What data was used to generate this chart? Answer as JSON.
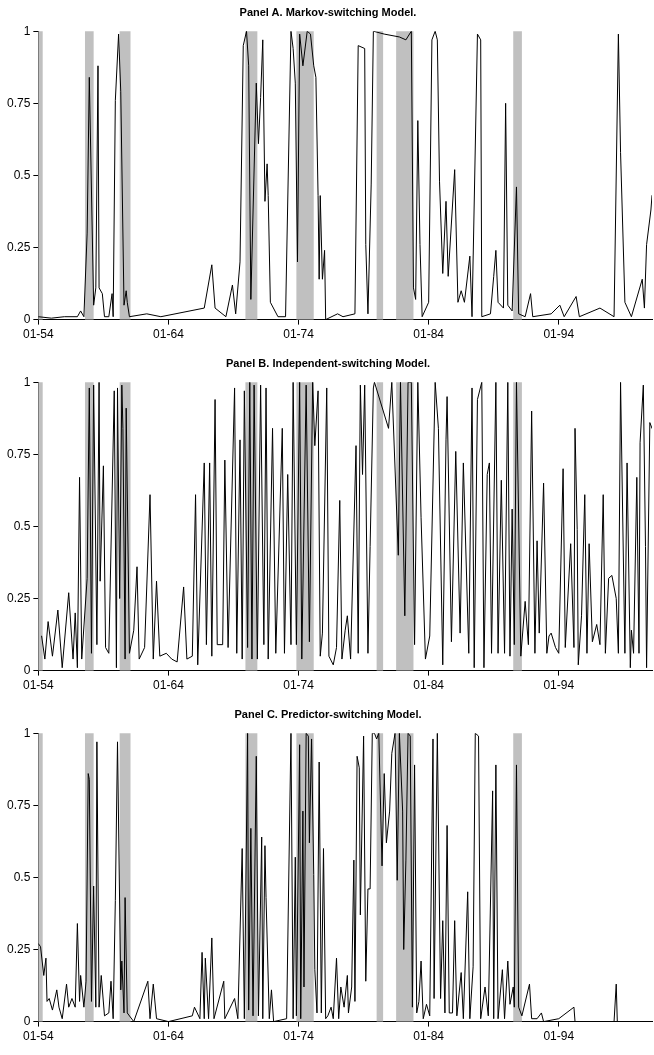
{
  "chart_data": [
    {
      "type": "line",
      "title": "Panel A. Markov-switching Model.",
      "xlim": [
        "1954-01",
        "2001-03"
      ],
      "xticks": [
        {
          "value": "1954-01",
          "label": "01-54"
        },
        {
          "value": "1964-01",
          "label": "01-64"
        },
        {
          "value": "1974-01",
          "label": "01-74"
        },
        {
          "value": "1984-01",
          "label": "01-84"
        },
        {
          "value": "1994-01",
          "label": "01-94"
        }
      ],
      "ylim": [
        0,
        1
      ],
      "yticks": [
        0,
        0.25,
        0.5,
        0.75,
        1
      ],
      "grid": false,
      "legend": false,
      "bands": [
        {
          "axis": "x",
          "from": "1954-01",
          "to": "1954-05",
          "color": "#c0c0c0"
        },
        {
          "axis": "x",
          "from": "1957-08",
          "to": "1958-04",
          "color": "#c0c0c0"
        },
        {
          "axis": "x",
          "from": "1960-04",
          "to": "1961-02",
          "color": "#c0c0c0"
        },
        {
          "axis": "x",
          "from": "1969-12",
          "to": "1970-11",
          "color": "#c0c0c0"
        },
        {
          "axis": "x",
          "from": "1973-11",
          "to": "1975-03",
          "color": "#c0c0c0"
        },
        {
          "axis": "x",
          "from": "1980-01",
          "to": "1980-07",
          "color": "#c0c0c0"
        },
        {
          "axis": "x",
          "from": "1981-07",
          "to": "1982-11",
          "color": "#c0c0c0"
        },
        {
          "axis": "x",
          "from": "1990-07",
          "to": "1991-03",
          "color": "#c0c0c0"
        }
      ],
      "series": [
        {
          "color": "#000000",
          "x": [
            "1954-01",
            "1955-01",
            "1956-01",
            "1957-01",
            "1957-04",
            "1957-07",
            "1957-10",
            "1957-12",
            "1958-04",
            "1958-06",
            "1958-08",
            "1958-09",
            "1958-12",
            "1959-02",
            "1959-06",
            "1959-09",
            "1959-10",
            "1959-12",
            "1960-03",
            "1960-05",
            "1960-08",
            "1960-10",
            "1960-11",
            "1961-01",
            "1962-05",
            "1963-06",
            "1966-10",
            "1967-05",
            "1967-08",
            "1968-06",
            "1968-12",
            "1969-03",
            "1969-07",
            "1969-10",
            "1970-01",
            "1970-03",
            "1970-05",
            "1970-10",
            "1970-12",
            "1971-02",
            "1971-04",
            "1971-06",
            "1971-08",
            "1971-09",
            "1971-11",
            "1972-06",
            "1973-01",
            "1973-06",
            "1973-08",
            "1973-10",
            "1973-12",
            "1974-02",
            "1974-05",
            "1974-09",
            "1974-12",
            "1975-03",
            "1975-05",
            "1975-07",
            "1975-08",
            "1975-09",
            "1975-11",
            "1976-01",
            "1976-02",
            "1977-01",
            "1977-06",
            "1978-05",
            "1978-08",
            "1979-02",
            "1979-03",
            "1979-05",
            "1979-08",
            "1979-10",
            "1980-08",
            "1981-10",
            "1982-04",
            "1982-09",
            "1982-11",
            "1983-01",
            "1983-03",
            "1983-05",
            "1983-07",
            "1984-01",
            "1984-04",
            "1984-07",
            "1984-09",
            "1984-11",
            "1985-02",
            "1985-05",
            "1985-07",
            "1986-01",
            "1986-04",
            "1986-07",
            "1986-10",
            "1987-03",
            "1987-05",
            "1987-10",
            "1988-01",
            "1988-02",
            "1988-10",
            "1989-01",
            "1989-03",
            "1989-05",
            "1989-10",
            "1989-12",
            "1990-02",
            "1990-06",
            "1990-10",
            "1990-12",
            "1991-06",
            "1991-11",
            "1992-01",
            "1993-06",
            "1994-02",
            "1994-06",
            "1995-05",
            "1995-08",
            "1997-03",
            "1998-04",
            "1998-08",
            "1998-10",
            "1999-02",
            "1999-08",
            "2000-06",
            "2000-08",
            "2000-10",
            "2001-02",
            "2001-03"
          ],
          "values": [
            0.01,
            0.005,
            0.01,
            0.01,
            0.03,
            0.01,
            0.3,
            0.84,
            0.05,
            0.11,
            0.88,
            0.11,
            0.09,
            0.01,
            0.01,
            0.09,
            0.01,
            0.76,
            0.99,
            0.79,
            0.05,
            0.1,
            0.06,
            0.01,
            0.02,
            0.01,
            0.04,
            0.19,
            0.04,
            0.01,
            0.12,
            0.02,
            0.2,
            0.95,
            1,
            0.88,
            0.07,
            0.82,
            0.61,
            0.77,
            0.97,
            0.41,
            0.54,
            0.43,
            0.06,
            0.01,
            0.01,
            1,
            0.94,
            0.82,
            0.2,
            0.99,
            0.88,
            1,
            0.99,
            0.88,
            0.84,
            0.43,
            0.14,
            0.43,
            0.14,
            0.24,
            0,
            0.02,
            0.01,
            0.02,
            0.95,
            0.94,
            0.26,
            0.02,
            0.47,
            1,
            0.99,
            0.98,
            0.97,
            1,
            0.11,
            0.07,
            0.69,
            0.26,
            0.01,
            0.06,
            0.97,
            1,
            0.97,
            0.48,
            0.16,
            0.41,
            0.15,
            0.52,
            0.06,
            0.1,
            0.06,
            0.22,
            0.01,
            0.99,
            0.97,
            0.01,
            0.02,
            0.15,
            0.24,
            0.06,
            0.04,
            0.75,
            0.05,
            0.03,
            0.46,
            0.02,
            0.01,
            0.09,
            0.01,
            0.02,
            0.05,
            0.01,
            0.08,
            0.01,
            0.04,
            0.01,
            0.99,
            0.58,
            0.06,
            0.01,
            0.14,
            0.04,
            0.26,
            0.38,
            0.43
          ]
        }
      ]
    },
    {
      "type": "line",
      "title": "Panel B. Independent-switching Model.",
      "xlim": [
        "1954-01",
        "2001-03"
      ],
      "xticks": [
        {
          "value": "1954-01",
          "label": "01-54"
        },
        {
          "value": "1964-01",
          "label": "01-64"
        },
        {
          "value": "1974-01",
          "label": "01-74"
        },
        {
          "value": "1984-01",
          "label": "01-84"
        },
        {
          "value": "1994-01",
          "label": "01-94"
        }
      ],
      "ylim": [
        0,
        1
      ],
      "yticks": [
        0,
        0.25,
        0.5,
        0.75,
        1
      ],
      "grid": false,
      "legend": false,
      "bands": [
        {
          "axis": "x",
          "from": "1954-01",
          "to": "1954-05",
          "color": "#c0c0c0"
        },
        {
          "axis": "x",
          "from": "1957-08",
          "to": "1958-04",
          "color": "#c0c0c0"
        },
        {
          "axis": "x",
          "from": "1960-04",
          "to": "1961-02",
          "color": "#c0c0c0"
        },
        {
          "axis": "x",
          "from": "1969-12",
          "to": "1970-11",
          "color": "#c0c0c0"
        },
        {
          "axis": "x",
          "from": "1973-11",
          "to": "1975-03",
          "color": "#c0c0c0"
        },
        {
          "axis": "x",
          "from": "1980-01",
          "to": "1980-07",
          "color": "#c0c0c0"
        },
        {
          "axis": "x",
          "from": "1981-07",
          "to": "1982-11",
          "color": "#c0c0c0"
        },
        {
          "axis": "x",
          "from": "1990-07",
          "to": "1991-03",
          "color": "#c0c0c0"
        }
      ],
      "series": [
        {
          "color": "#000000",
          "x": [
            "1954-04",
            "1954-07",
            "1954-10",
            "1955-02",
            "1955-07",
            "1955-11",
            "1956-05",
            "1956-09",
            "1956-11",
            "1957-01",
            "1957-03",
            "1957-05",
            "1957-10",
            "1957-12",
            "1958-02",
            "1958-04",
            "1958-07",
            "1958-09",
            "1958-10",
            "1959-01",
            "1959-03",
            "1959-06",
            "1959-11",
            "1960-01",
            "1960-02",
            "1960-04",
            "1960-06",
            "1960-07",
            "1960-09",
            "1960-10",
            "1961-01",
            "1961-05",
            "1961-08",
            "1961-10",
            "1962-03",
            "1962-08",
            "1962-11",
            "1963-02",
            "1963-05",
            "1963-11",
            "1964-04",
            "1964-09",
            "1965-03",
            "1965-06",
            "1965-11",
            "1966-02",
            "1966-04",
            "1966-10",
            "1966-12",
            "1967-03",
            "1967-05",
            "1967-08",
            "1967-10",
            "1968-03",
            "1968-05",
            "1968-08",
            "1969-02",
            "1969-04",
            "1969-07",
            "1969-09",
            "1969-11",
            "1970-02",
            "1970-04",
            "1970-06",
            "1970-08",
            "1970-11",
            "1971-02",
            "1971-05",
            "1971-07",
            "1971-09",
            "1972-01",
            "1972-04",
            "1972-10",
            "1972-12",
            "1973-03",
            "1973-06",
            "1973-08",
            "1973-11",
            "1974-02",
            "1974-04",
            "1974-08",
            "1974-11",
            "1975-02",
            "1975-04",
            "1975-07",
            "1975-09",
            "1975-11",
            "1976-03",
            "1976-05",
            "1976-09",
            "1976-12",
            "1977-03",
            "1977-05",
            "1977-08",
            "1977-10",
            "1978-01",
            "1978-06",
            "1978-08",
            "1978-10",
            "1978-12",
            "1979-02",
            "1979-05",
            "1979-07",
            "1979-10",
            "1979-11",
            "1980-12",
            "1981-03",
            "1981-09",
            "1981-11",
            "1982-03",
            "1982-06",
            "1982-09",
            "1982-12",
            "1983-03",
            "1983-06",
            "1983-10",
            "1984-02",
            "1984-07",
            "1984-10",
            "1985-02",
            "1985-05",
            "1985-06",
            "1985-10",
            "1986-02",
            "1986-06",
            "1986-09",
            "1987-02",
            "1987-05",
            "1987-07",
            "1987-10",
            "1988-02",
            "1988-04",
            "1988-07",
            "1988-09",
            "1988-11",
            "1989-03",
            "1989-05",
            "1989-08",
            "1989-11",
            "1990-02",
            "1990-04",
            "1990-06",
            "1990-08",
            "1990-10",
            "1991-02",
            "1991-06",
            "1991-09",
            "1991-12",
            "1992-03",
            "1992-05",
            "1992-07",
            "1992-11",
            "1993-02",
            "1993-04",
            "1993-06",
            "1993-10",
            "1994-01",
            "1994-05",
            "1994-07",
            "1994-12",
            "1995-03",
            "1995-04",
            "1995-06",
            "1995-07",
            "1995-10",
            "1996-01",
            "1996-03",
            "1996-05",
            "1996-08",
            "1996-12",
            "1997-03",
            "1997-06",
            "1997-08",
            "1997-11",
            "1998-02",
            "1998-06",
            "1998-08",
            "1998-10",
            "1999-02",
            "1999-04",
            "1999-07",
            "1999-08",
            "1999-10",
            "2000-01",
            "2000-03",
            "2000-04",
            "2000-07",
            "2000-09",
            "2000-10",
            "2001-01",
            "2001-03"
          ],
          "values": [
            0.12,
            0.04,
            0.17,
            0.05,
            0.21,
            0.01,
            0.27,
            0.04,
            0.2,
            0.01,
            0.67,
            0.04,
            0.32,
            0.98,
            0.06,
            0.99,
            0.09,
            1,
            0.31,
            0.71,
            0.08,
            0.06,
            0.97,
            0.01,
            0.98,
            0.25,
            0.99,
            0.84,
            0.04,
            0.91,
            0.06,
            0.14,
            0.36,
            0.04,
            0.08,
            0.61,
            0.04,
            0.31,
            0.05,
            0.06,
            0.04,
            0.03,
            0.29,
            0.04,
            0.05,
            0.61,
            0.02,
            0.72,
            0.09,
            0.72,
            0.05,
            0.94,
            0.09,
            0.09,
            0.73,
            0.08,
            0.98,
            0.06,
            0.8,
            0.04,
            0.97,
            0.08,
            1,
            0.04,
            0.99,
            0.04,
            0.99,
            0.09,
            0.98,
            0.04,
            0.84,
            0.06,
            0.84,
            0.06,
            0.68,
            0.09,
            1,
            0.09,
            1,
            0.04,
            0.99,
            0.1,
            1,
            0.78,
            0.97,
            0.05,
            0.13,
            0.98,
            0.05,
            0.02,
            0.08,
            0.59,
            0.04,
            0.14,
            0.19,
            0.04,
            0.78,
            0.06,
            0.99,
            0.68,
            0.99,
            0.06,
            0.43,
            0.98,
            1,
            0.84,
            1,
            0.4,
            1,
            0.19,
            1,
            1,
            0.09,
            1,
            0.53,
            0.04,
            0.12,
            1,
            0.84,
            0.02,
            0.8,
            0.95,
            0.1,
            0.76,
            0.13,
            0.72,
            0.06,
            0.98,
            0.01,
            0.94,
            1,
            0.01,
            0.68,
            0.72,
            0.06,
            1,
            0.06,
            0.66,
            0.06,
            1,
            0.05,
            0.56,
            0.09,
            1,
            0.05,
            0.24,
            0.09,
            0.9,
            0.06,
            0.45,
            0.13,
            0.65,
            0.06,
            0.12,
            0.13,
            0.08,
            0.06,
            0.7,
            0.08,
            0.44,
            0.08,
            0.84,
            0.49,
            0.02,
            0.19,
            0.61,
            0.06,
            0.44,
            0.1,
            0.16,
            0.09,
            0.61,
            0.06,
            0.32,
            0.33,
            0.25,
            0.06,
            1,
            0.06,
            0.72,
            0.01,
            0.14,
            0.06,
            0.67,
            0.06,
            0.79,
            0.99,
            0.43,
            0.01,
            0.86,
            0.84
          ]
        }
      ]
    },
    {
      "type": "line",
      "title": "Panel C. Predictor-switching Model.",
      "xlim": [
        "1954-01",
        "2001-03"
      ],
      "xticks": [
        {
          "value": "1954-01",
          "label": "01-54"
        },
        {
          "value": "1964-01",
          "label": "01-64"
        },
        {
          "value": "1974-01",
          "label": "01-74"
        },
        {
          "value": "1984-01",
          "label": "01-84"
        },
        {
          "value": "1994-01",
          "label": "01-94"
        }
      ],
      "ylim": [
        0,
        1
      ],
      "yticks": [
        0,
        0.25,
        0.5,
        0.75,
        1
      ],
      "grid": false,
      "legend": false,
      "bands": [
        {
          "axis": "x",
          "from": "1954-01",
          "to": "1954-05",
          "color": "#c0c0c0"
        },
        {
          "axis": "x",
          "from": "1957-08",
          "to": "1958-04",
          "color": "#c0c0c0"
        },
        {
          "axis": "x",
          "from": "1960-04",
          "to": "1961-02",
          "color": "#c0c0c0"
        },
        {
          "axis": "x",
          "from": "1969-12",
          "to": "1970-11",
          "color": "#c0c0c0"
        },
        {
          "axis": "x",
          "from": "1973-11",
          "to": "1975-03",
          "color": "#c0c0c0"
        },
        {
          "axis": "x",
          "from": "1980-01",
          "to": "1980-07",
          "color": "#c0c0c0"
        },
        {
          "axis": "x",
          "from": "1981-07",
          "to": "1982-11",
          "color": "#c0c0c0"
        },
        {
          "axis": "x",
          "from": "1990-07",
          "to": "1991-03",
          "color": "#c0c0c0"
        }
      ],
      "series": [
        {
          "color": "#000000",
          "x": [
            "1954-01",
            "1954-03",
            "1954-06",
            "1954-08",
            "1954-09",
            "1954-11",
            "1955-02",
            "1955-06",
            "1955-08",
            "1955-11",
            "1956-03",
            "1956-05",
            "1956-08",
            "1956-11",
            "1957-01",
            "1957-03",
            "1957-04",
            "1957-07",
            "1957-09",
            "1957-11",
            "1957-12",
            "1958-02",
            "1958-04",
            "1958-06",
            "1958-07",
            "1958-09",
            "1958-11",
            "1959-02",
            "1959-06",
            "1959-08",
            "1959-10",
            "1959-12",
            "1960-02",
            "1960-05",
            "1960-06",
            "1960-08",
            "1960-09",
            "1960-11",
            "1961-05",
            "1962-06",
            "1962-08",
            "1962-11",
            "1963-02",
            "1964-01",
            "1965-11",
            "1966-01",
            "1966-06",
            "1966-08",
            "1966-10",
            "1966-11",
            "1967-02",
            "1967-05",
            "1967-07",
            "1968-04",
            "1968-05",
            "1969-02",
            "1969-05",
            "1969-09",
            "1969-11",
            "1970-02",
            "1970-03",
            "1970-05",
            "1970-07",
            "1970-10",
            "1970-12",
            "1971-03",
            "1971-04",
            "1971-06",
            "1971-07",
            "1971-10",
            "1971-12",
            "1972-02",
            "1973-02",
            "1973-06",
            "1973-08",
            "1973-10",
            "1973-11",
            "1974-02",
            "1974-03",
            "1974-05",
            "1974-06",
            "1974-08",
            "1974-10",
            "1974-11",
            "1975-01",
            "1975-03",
            "1975-04",
            "1975-06",
            "1975-08",
            "1975-10",
            "1975-12",
            "1976-02",
            "1976-04",
            "1976-07",
            "1976-09",
            "1976-12",
            "1977-02",
            "1977-04",
            "1977-07",
            "1977-10",
            "1977-11",
            "1978-02",
            "1978-04",
            "1978-05",
            "1978-07",
            "1978-09",
            "1978-10",
            "1979-01",
            "1979-03",
            "1979-05",
            "1979-07",
            "1979-09",
            "1979-11",
            "1980-01",
            "1980-03",
            "1980-06",
            "1980-08",
            "1980-10",
            "1981-01",
            "1981-03",
            "1981-06",
            "1981-08",
            "1981-10",
            "1982-01",
            "1982-02",
            "1982-04",
            "1982-06",
            "1982-08",
            "1982-10",
            "1982-12",
            "1983-02",
            "1983-04",
            "1983-06",
            "1983-08",
            "1983-11",
            "1984-02",
            "1984-05",
            "1984-06",
            "1984-09",
            "1984-12",
            "1985-02",
            "1985-04",
            "1985-06",
            "1985-08",
            "1985-11",
            "1986-01",
            "1986-03",
            "1986-07",
            "1986-09",
            "1987-01",
            "1987-03",
            "1987-06",
            "1987-08",
            "1987-11",
            "1988-01",
            "1988-05",
            "1988-08",
            "1988-12",
            "1989-01",
            "1989-03",
            "1989-05",
            "1989-09",
            "1989-11",
            "1990-02",
            "1990-04",
            "1990-07",
            "1990-08",
            "1990-10",
            "1990-12",
            "1991-03",
            "1991-10",
            "1991-12",
            "1992-05",
            "1992-09",
            "1992-11",
            "1994-01",
            "1995-03",
            "1995-04",
            "1996-01",
            "1998-04",
            "1998-06",
            "1998-07",
            "2000-11"
          ],
          "values": [
            0.27,
            0.26,
            0.16,
            0.22,
            0.07,
            0.08,
            0.04,
            0.11,
            0.05,
            0.01,
            0.13,
            0.05,
            0.08,
            0.05,
            0.34,
            0.07,
            0.16,
            0.05,
            0.14,
            0.86,
            0.84,
            0.07,
            0.47,
            0.05,
            0.97,
            0.05,
            0.16,
            0.02,
            0.03,
            0.14,
            0.01,
            0.42,
            0.97,
            0.11,
            0.21,
            0.03,
            0.43,
            0.03,
            0,
            0.14,
            0.01,
            0.13,
            0.01,
            0,
            0.02,
            0.05,
            0.01,
            0.24,
            0.01,
            0.22,
            0.01,
            0.29,
            0.01,
            0.14,
            0.01,
            0.08,
            0.01,
            0.6,
            0.01,
            1,
            0.04,
            0.67,
            0.02,
            0.92,
            0.02,
            0.64,
            0.01,
            0.61,
            0.43,
            0.01,
            0.11,
            0,
            0.01,
            1,
            0.01,
            0.57,
            0.02,
            0.96,
            0.01,
            0.73,
            0.12,
            1,
            0.99,
            0.62,
            0.98,
            0.51,
            0.18,
            0.03,
            0.9,
            0.03,
            0.6,
            0.01,
            0.02,
            0.05,
            0.01,
            0.22,
            0.01,
            0.12,
            0.05,
            0.16,
            0.03,
            0.12,
            0.56,
            0.07,
            0.92,
            0.88,
            0.37,
            0.99,
            0.14,
            0.46,
            0.46,
            1,
            1,
            0.98,
            1,
            0.54,
            0.86,
            0.62,
            0.73,
            0.93,
            1,
            0.49,
            1,
            0.73,
            0.25,
            0.56,
            1,
            0.99,
            0.05,
            0.89,
            0.03,
            0.07,
            0.21,
            0.01,
            0.06,
            0.02,
            0.98,
            0.08,
            1,
            0.08,
            0.35,
            0.03,
            0.68,
            0.03,
            0.03,
            0.35,
            0.02,
            0.17,
            0.01,
            0.45,
            0.01,
            0.19,
            1,
            0.99,
            0.01,
            0.12,
            0.02,
            0.8,
            0.01,
            0.89,
            0.01,
            0.18,
            0.01,
            0.21,
            0.06,
            0.12,
            0.05,
            0.89,
            0.05,
            0.02,
            0.13,
            0.01,
            0.01,
            0.03,
            0,
            0.01,
            0.05,
            0,
            0,
            0,
            0.13,
            0,
            0
          ]
        }
      ]
    }
  ]
}
